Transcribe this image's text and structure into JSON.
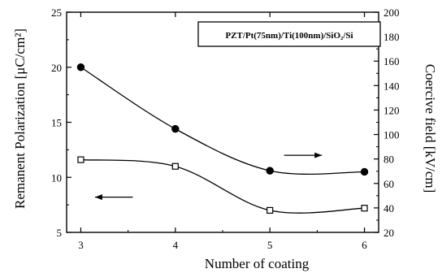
{
  "chart_data": {
    "type": "line",
    "title": "",
    "xlabel": "Number of coating",
    "ylabel": "Remanent  Polarization [μC/cm²]",
    "y2label": "Coercive field [kV/cm]",
    "annotation": "PZT/Pt(75nm)/Ti(100nm)/SiO₂/Si",
    "x": [
      3,
      4,
      5,
      6
    ],
    "x_ticks": [
      "3",
      "4",
      "5",
      "6"
    ],
    "xlim": [
      2.85,
      6.15
    ],
    "ylim": [
      5,
      25
    ],
    "y_ticks": [
      "5",
      "10",
      "15",
      "20",
      "25"
    ],
    "y2lim": [
      20,
      200
    ],
    "y2_ticks": [
      "20",
      "40",
      "60",
      "80",
      "100",
      "120",
      "140",
      "160",
      "180",
      "200"
    ],
    "grid": false,
    "series": [
      {
        "axis": "left",
        "marker": "circle-filled",
        "values": [
          20.0,
          14.4,
          10.6,
          10.5
        ]
      },
      {
        "axis": "left",
        "marker": "square-open",
        "values": [
          11.6,
          11.0,
          7.0,
          7.2
        ]
      }
    ],
    "arrows": [
      {
        "direction": "left",
        "points_to": "left-axis"
      },
      {
        "direction": "right",
        "points_to": "right-axis"
      }
    ]
  }
}
